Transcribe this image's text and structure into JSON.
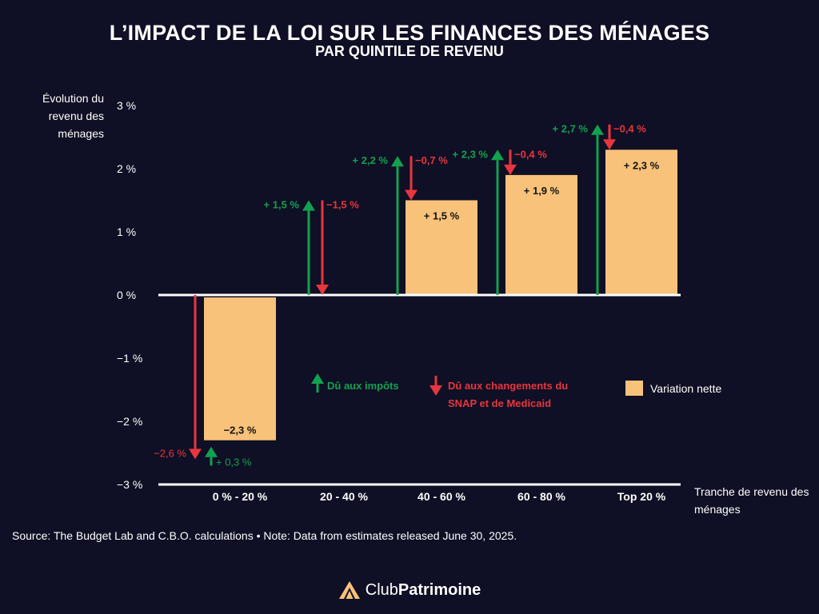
{
  "header": {
    "title": "L’IMPACT DE LA LOI SUR LES FINANCES DES MÉNAGES",
    "subtitle": "PAR QUINTILE DE REVENU"
  },
  "axes": {
    "ylabel": "Évolution du revenu des ménages",
    "xlabel": "Tranche de revenu des ménages"
  },
  "legend": {
    "taxes_label": "Dû aux impôts",
    "benefits_label": "Dû aux changements du SNAP et de Medicaid",
    "net_label": "Variation nette"
  },
  "footer": {
    "source": "Source: The Budget Lab and C.B.O. calculations • Note: Data from estimates released June 30, 2025.",
    "brand_regular": "Club",
    "brand_bold": "Patrimoine"
  },
  "colors": {
    "background": "#0f0f25",
    "net_bar": "#f8c27a",
    "taxes_arrow": "#12a150",
    "benefits_arrow": "#e8363e",
    "axis": "#ffffff"
  },
  "chart_data": {
    "type": "bar",
    "categories": [
      "0 % - 20 %",
      "20 - 40 %",
      "40 - 60 %",
      "60 - 80 %",
      "Top 20 %"
    ],
    "ylim": [
      -3,
      3
    ],
    "yticks": [
      3,
      2,
      1,
      0,
      -1,
      -2,
      -3
    ],
    "ytick_labels": [
      "3 %",
      "2 %",
      "1 %",
      "0 %",
      "−1 %",
      "−2 %",
      "−3 %"
    ],
    "series": [
      {
        "name": "Dû aux impôts",
        "values": [
          0.3,
          1.5,
          2.2,
          2.3,
          2.7
        ],
        "labels": [
          "+ 0,3 %",
          "+ 1,5 %",
          "+ 2,2 %",
          "+ 2,3 %",
          "+ 2,7 %"
        ]
      },
      {
        "name": "Dû aux changements du SNAP et de Medicaid",
        "values": [
          -2.6,
          -1.5,
          -0.7,
          -0.4,
          -0.4
        ],
        "labels": [
          "−2,6 %",
          "−1,5 %",
          "−0,7 %",
          "−0,4 %",
          "−0,4 %"
        ]
      },
      {
        "name": "Variation nette",
        "values": [
          -2.3,
          0.0,
          1.5,
          1.9,
          2.3
        ],
        "labels": [
          "−2,3 %",
          "",
          "+ 1,5 %",
          "+ 1,9 %",
          "+ 2,3 %"
        ]
      }
    ],
    "legend_position": "middle-right",
    "grid": false
  }
}
